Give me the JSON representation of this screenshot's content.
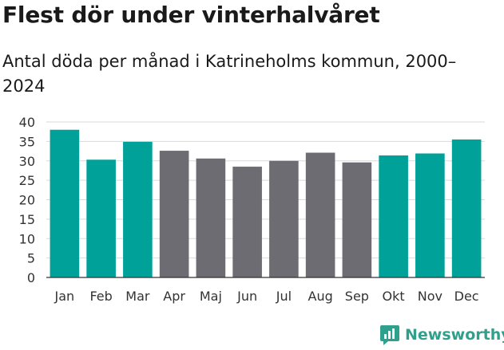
{
  "title": "Flest dör under vinterhalvåret",
  "subtitle": "Antal döda per månad i Katrineholms kommun, 2000–2024",
  "brand": {
    "name": "Newsworthy"
  },
  "colors": {
    "winter": "#00a199",
    "summer": "#6d6c72",
    "grid": "#d9d9d9",
    "brand": "#2fa08c"
  },
  "chart_data": {
    "type": "bar",
    "title": "Flest dör under vinterhalvåret",
    "subtitle": "Antal döda per månad i Katrineholms kommun, 2000–2024",
    "xlabel": "",
    "ylabel": "",
    "ylim": [
      0,
      40
    ],
    "yticks": [
      0,
      5,
      10,
      15,
      20,
      25,
      30,
      35,
      40
    ],
    "categories": [
      "Jan",
      "Feb",
      "Mar",
      "Apr",
      "Maj",
      "Jun",
      "Jul",
      "Aug",
      "Sep",
      "Okt",
      "Nov",
      "Dec"
    ],
    "values": [
      38,
      30.3,
      34.9,
      32.6,
      30.6,
      28.5,
      30,
      32.1,
      29.6,
      31.4,
      31.9,
      35.5
    ],
    "highlight": [
      true,
      true,
      true,
      false,
      false,
      false,
      false,
      false,
      false,
      true,
      true,
      true
    ],
    "grid": true,
    "legend": "none"
  }
}
